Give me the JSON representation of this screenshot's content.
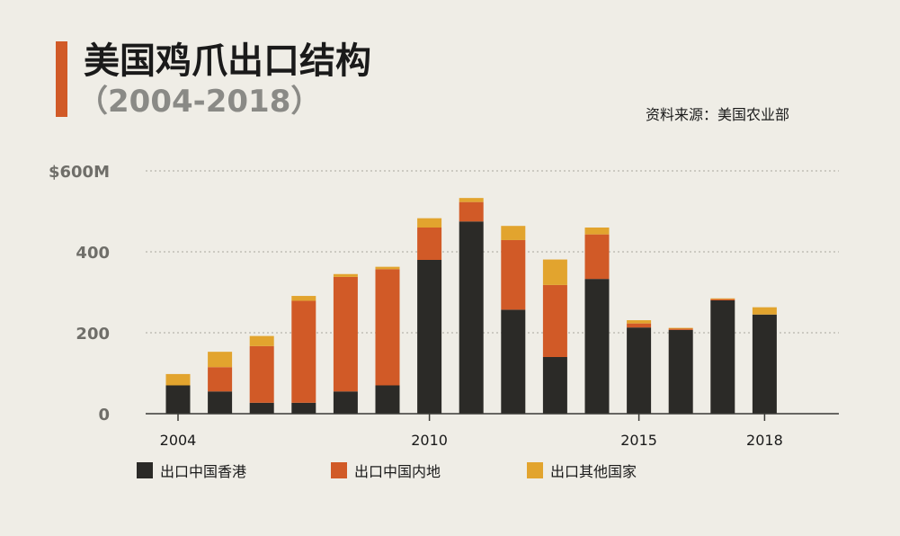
{
  "header": {
    "title": "美国鸡爪出口结构",
    "subtitle": "（2004-2018）",
    "source": "资料来源：美国农业部"
  },
  "legend": [
    {
      "label": "出口中国香港",
      "color": "#2b2a27"
    },
    {
      "label": "出口中国内地",
      "color": "#d15a27"
    },
    {
      "label": "出口其他国家",
      "color": "#e2a42e"
    }
  ],
  "chart_data": {
    "type": "bar",
    "stacked": true,
    "categories": [
      "2004",
      "2005",
      "2006",
      "2007",
      "2008",
      "2009",
      "2010",
      "2011",
      "2012",
      "2013",
      "2014",
      "2015",
      "2016",
      "2017",
      "2018"
    ],
    "x_tick_labels": [
      "2004",
      "2010",
      "2015",
      "2018"
    ],
    "y_tick_labels": [
      "$600M",
      "400",
      "200",
      "0"
    ],
    "ylim": [
      0,
      600
    ],
    "grid": true,
    "legend_position": "bottom",
    "series": [
      {
        "name": "出口中国香港",
        "color": "#2b2a27",
        "values": [
          70,
          55,
          27,
          27,
          55,
          70,
          380,
          475,
          257,
          140,
          333,
          213,
          207,
          280,
          245
        ]
      },
      {
        "name": "出口中国内地",
        "color": "#d15a27",
        "values": [
          0,
          60,
          140,
          252,
          283,
          287,
          80,
          48,
          172,
          178,
          110,
          10,
          3,
          3,
          0
        ]
      },
      {
        "name": "出口其他国家",
        "color": "#e2a42e",
        "values": [
          28,
          38,
          25,
          12,
          7,
          6,
          23,
          10,
          35,
          63,
          17,
          8,
          2,
          2,
          18
        ]
      }
    ]
  }
}
